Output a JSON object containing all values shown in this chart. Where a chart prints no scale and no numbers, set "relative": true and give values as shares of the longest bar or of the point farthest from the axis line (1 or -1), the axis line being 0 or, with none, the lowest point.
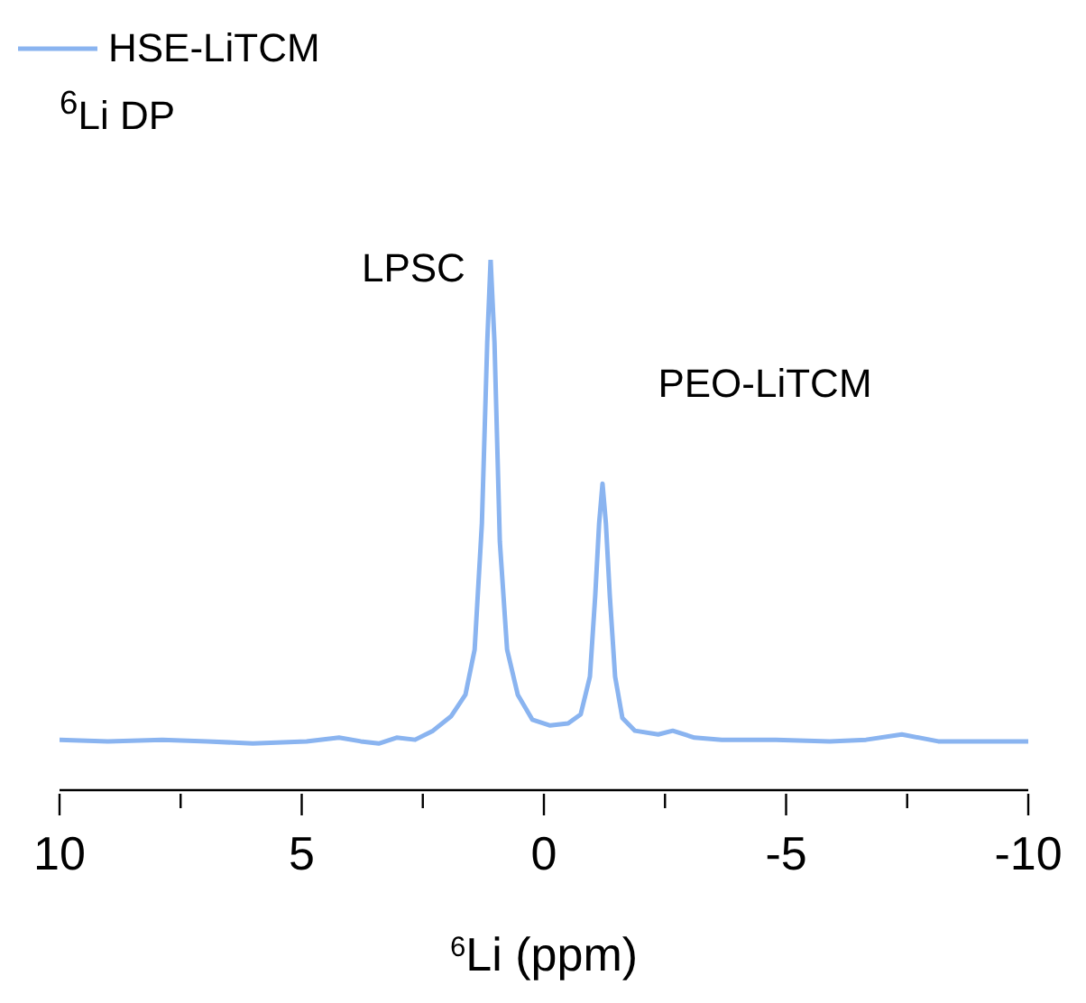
{
  "chart_data": {
    "type": "line",
    "relative": true,
    "xlabel": "$^{6}$Li (ppm)",
    "xlim": [
      10,
      -10
    ],
    "xticks": [
      10,
      {
        "value": 7.5,
        "label": null
      },
      5,
      {
        "value": 2.5,
        "label": null
      },
      0,
      {
        "value": -2.5,
        "label": null
      },
      -5,
      {
        "value": -7.5,
        "label": null
      },
      -10
    ],
    "x": [
      10,
      9.0,
      7.88,
      6.95,
      6.01,
      4.9,
      4.23,
      3.78,
      3.41,
      3.04,
      2.66,
      2.29,
      1.92,
      1.62,
      1.43,
      1.28,
      1.17,
      1.1,
      1.02,
      0.91,
      0.76,
      0.54,
      0.24,
      -0.13,
      -0.5,
      -0.76,
      -0.95,
      -1.06,
      -1.14,
      -1.21,
      -1.28,
      -1.36,
      -1.47,
      -1.62,
      -1.88,
      -2.36,
      -2.66,
      -3.11,
      -3.67,
      -4.79,
      -5.9,
      -6.65,
      -7.39,
      -8.14,
      -9.26,
      -10
    ],
    "series": [
      {
        "name": "HSE-LiTCM",
        "color": "#8ab4f0",
        "values": [
          0.095,
          0.092,
          0.095,
          0.092,
          0.088,
          0.092,
          0.099,
          0.092,
          0.088,
          0.099,
          0.095,
          0.112,
          0.139,
          0.18,
          0.265,
          0.503,
          0.844,
          1.0,
          0.844,
          0.469,
          0.265,
          0.18,
          0.133,
          0.122,
          0.126,
          0.143,
          0.214,
          0.367,
          0.503,
          0.578,
          0.503,
          0.367,
          0.214,
          0.136,
          0.112,
          0.105,
          0.112,
          0.099,
          0.095,
          0.095,
          0.092,
          0.095,
          0.105,
          0.092,
          0.092,
          0.092
        ]
      }
    ],
    "annotations": [
      "$^{6}$Li DP",
      {
        "text": "LPSC",
        "x": 1.1,
        "y": 1.0
      },
      {
        "text": "PEO-LiTCM",
        "x": -1.21,
        "y": 0.578
      }
    ],
    "legend": "top left",
    "grid": false,
    "marker": "none",
    "line_style": "solid"
  }
}
